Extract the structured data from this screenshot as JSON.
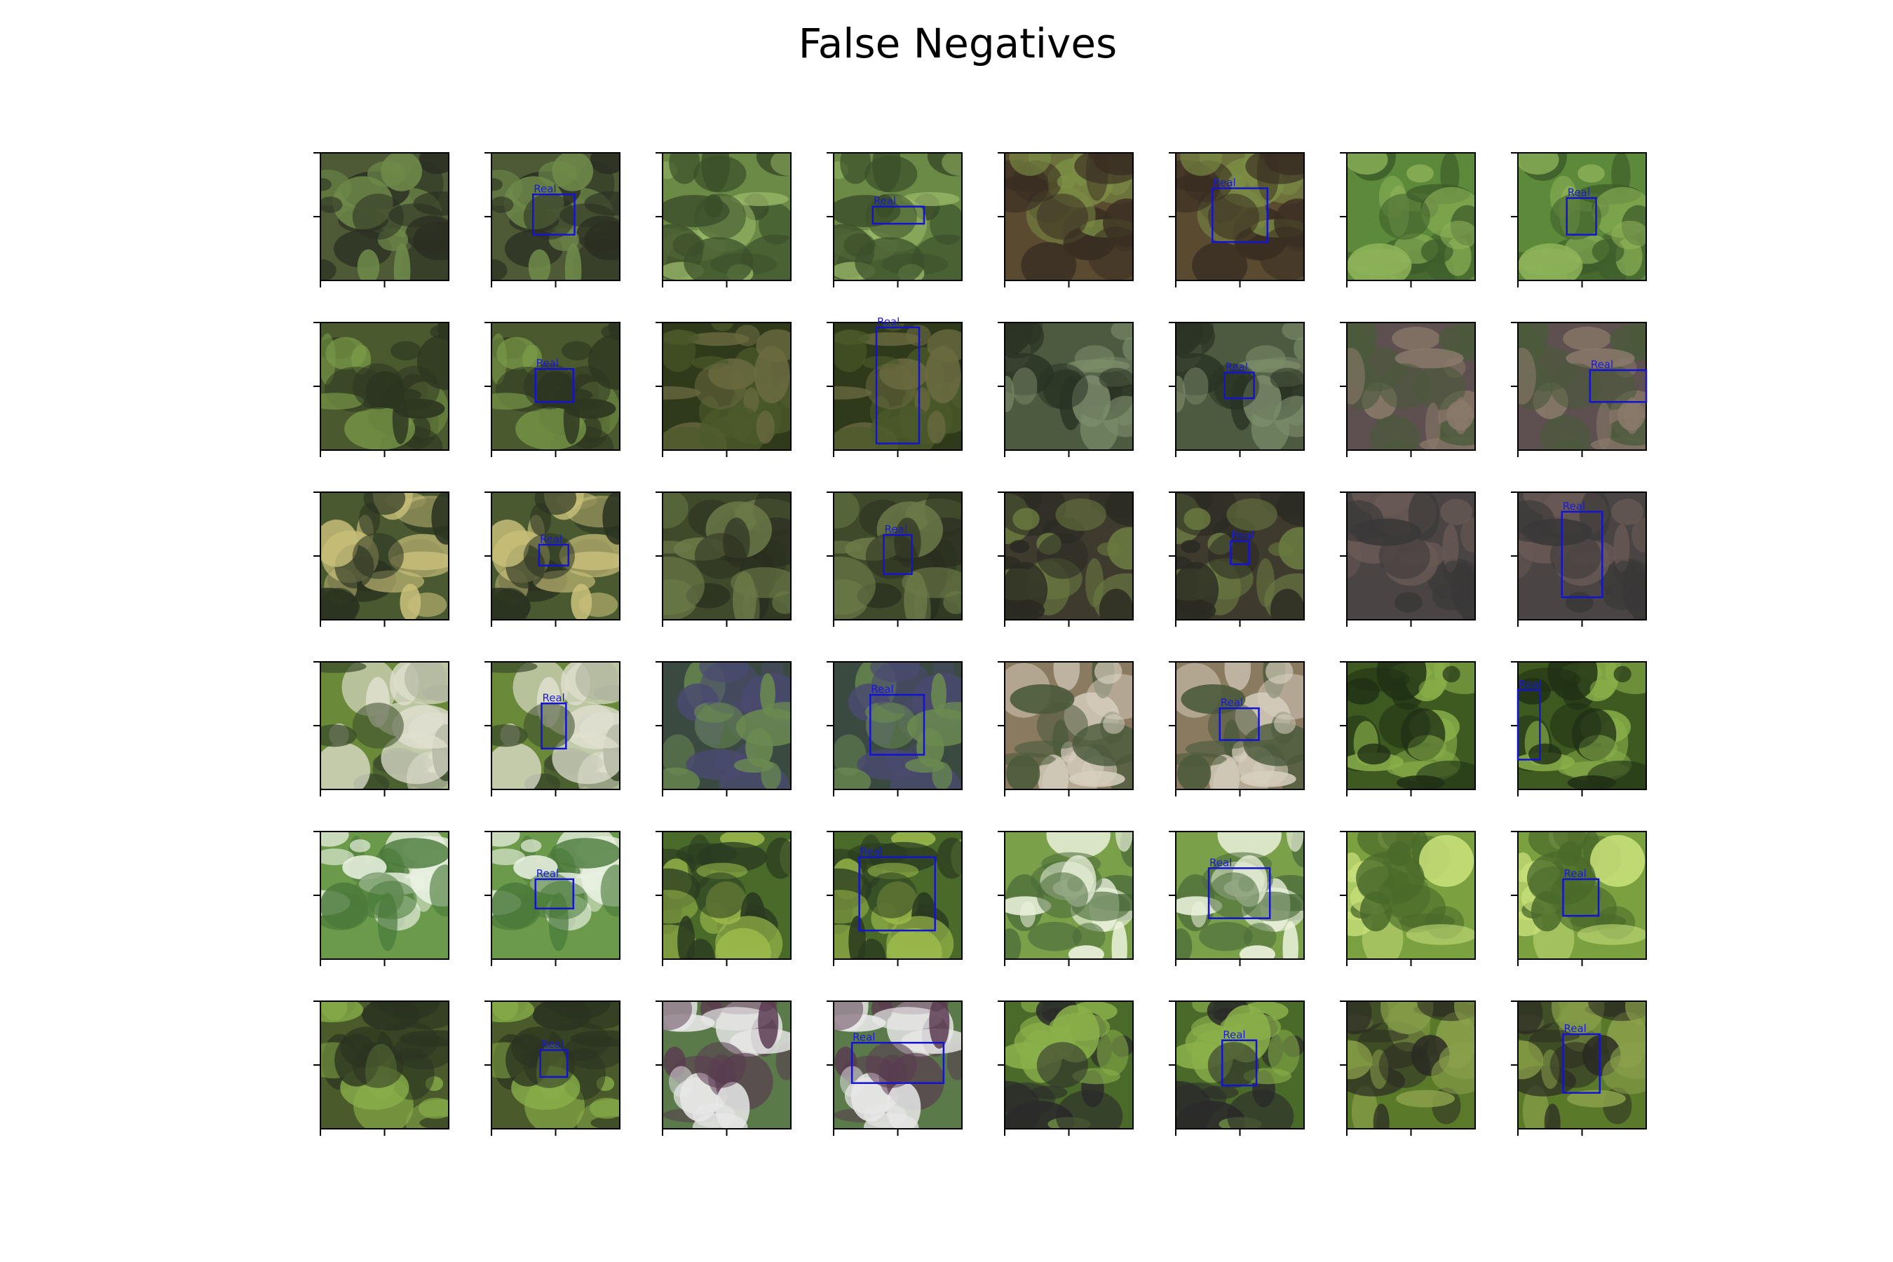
{
  "title": "False Negatives",
  "rows": [
    [
      "Real",
      "Real",
      "Real",
      "Real"
    ],
    [
      "Real",
      "Real",
      "Real",
      "Real"
    ],
    [
      "Real",
      "Real",
      "Real",
      "Real"
    ],
    [
      "Real",
      "Real",
      "Real",
      "Real"
    ],
    [
      "Real",
      "Real",
      "Real",
      "Real"
    ],
    [
      "Real",
      "Real",
      "Real",
      "Real"
    ]
  ]
}
